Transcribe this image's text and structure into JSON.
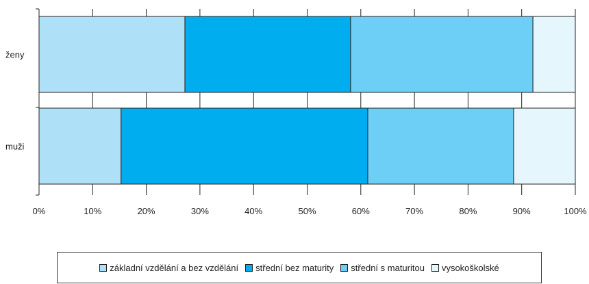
{
  "chart_data": {
    "type": "bar",
    "orientation": "horizontal",
    "stacked": "percent",
    "categories": [
      "ženy",
      "muži"
    ],
    "series": [
      {
        "name": "základní vzdělání a bez vzdělání",
        "color": "#aee0f7",
        "values": [
          27.2,
          15.3
        ]
      },
      {
        "name": "střední bez maturity",
        "color": "#00aeef",
        "values": [
          30.9,
          46.0
        ]
      },
      {
        "name": "střední s maturitou",
        "color": "#6dcff6",
        "values": [
          34.0,
          27.2
        ]
      },
      {
        "name": "vysokoškolské",
        "color": "#e6f6fd",
        "values": [
          7.9,
          11.5
        ]
      }
    ],
    "xlim": [
      0,
      100
    ],
    "xticks": [
      "0%",
      "10%",
      "20%",
      "30%",
      "40%",
      "50%",
      "60%",
      "70%",
      "80%",
      "90%",
      "100%"
    ],
    "legend": "bottom",
    "grid": true
  }
}
